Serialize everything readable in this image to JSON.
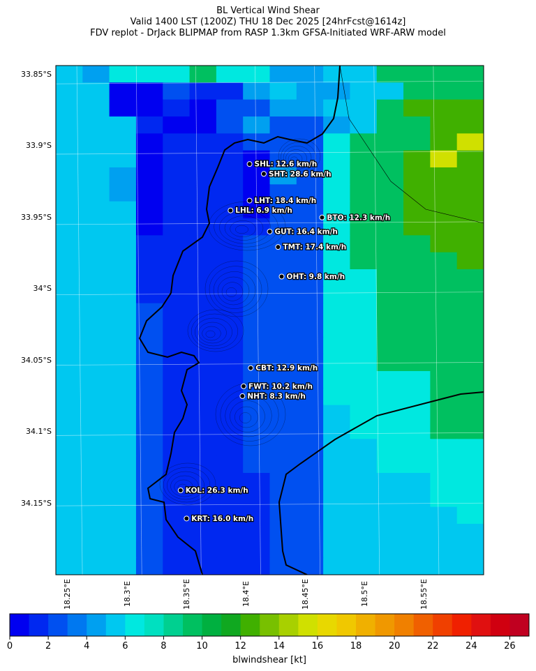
{
  "title": {
    "line1": "BL Vertical Wind Shear",
    "line2": "Valid 1400 LST (1200Z) THU 18 Dec 2025 [24hrFcst@1614z]",
    "line3": "FDV replot - DrJack BLIPMAP from RASP 1.3km GFSA-Initiated WRF-ARW model"
  },
  "axes": {
    "lat_labels": [
      "33.85°S",
      "33.9°S",
      "33.95°S",
      "34°S",
      "34.05°S",
      "34.1°S",
      "34.15°S"
    ],
    "lon_labels": [
      "18.25°E",
      "18.3°E",
      "18.35°E",
      "18.4°E",
      "18.45°E",
      "18.5°E",
      "18.55°E"
    ]
  },
  "stations": [
    {
      "code": "SHL",
      "label": "SHL: 12.6 km/h",
      "lon": 18.393,
      "lat": -33.908
    },
    {
      "code": "SHT",
      "label": "SHT: 28.6 km/h",
      "lon": 18.405,
      "lat": -33.915
    },
    {
      "code": "LHT",
      "label": "LHT: 18.4 km/h",
      "lon": 18.393,
      "lat": -33.934
    },
    {
      "code": "LHL",
      "label": "LHL: 6.9 km/h",
      "lon": 18.377,
      "lat": -33.941
    },
    {
      "code": "BTO",
      "label": "BTO: 12.3 km/h",
      "lon": 18.454,
      "lat": -33.946
    },
    {
      "code": "GUT",
      "label": "GUT: 16.4 km/h",
      "lon": 18.41,
      "lat": -33.956
    },
    {
      "code": "TMT",
      "label": "TMT: 17.4 km/h",
      "lon": 18.417,
      "lat": -33.967
    },
    {
      "code": "OHT",
      "label": "OHT: 9.8 km/h",
      "lon": 18.42,
      "lat": -33.988
    },
    {
      "code": "CBT",
      "label": "CBT: 12.9 km/h",
      "lon": 18.394,
      "lat": -34.053
    },
    {
      "code": "FWT",
      "label": "FWT: 10.2 km/h",
      "lon": 18.388,
      "lat": -34.066
    },
    {
      "code": "NHT",
      "label": "NHT: 8.3 km/h",
      "lon": 18.387,
      "lat": -34.073
    },
    {
      "code": "KOL",
      "label": "KOL: 26.3 km/h",
      "lon": 18.335,
      "lat": -34.14
    },
    {
      "code": "KRT",
      "label": "KRT: 16.0 km/h",
      "lon": 18.34,
      "lat": -34.16
    }
  ],
  "colorbar": {
    "label": "blwindshear [kt]",
    "ticks": [
      "0",
      "2",
      "4",
      "6",
      "8",
      "10",
      "12",
      "14",
      "16",
      "18",
      "20",
      "22",
      "24",
      "26"
    ],
    "min": 0,
    "max": 27,
    "step": 1,
    "colors": [
      "#0000f0",
      "#0028f0",
      "#0050f0",
      "#0078f0",
      "#00a0f0",
      "#00c8f0",
      "#00e8e0",
      "#00e0c0",
      "#00d090",
      "#00c060",
      "#00b040",
      "#10a820",
      "#40b000",
      "#78c000",
      "#a8d000",
      "#d0e000",
      "#e8d800",
      "#f0c800",
      "#f0b000",
      "#f09800",
      "#f08000",
      "#f06000",
      "#f04000",
      "#f02000",
      "#e01010",
      "#d00010",
      "#c00020"
    ]
  },
  "grid": {
    "lon_min": 18.23,
    "lon_max": 18.59,
    "lat_max": -33.838,
    "lat_min": -34.2,
    "rows": [
      "5466676644557777",
      "5511322454455777",
      "5511213344557888",
      "5552113433457788",
      "5551222033677789",
      "5551222133677898",
      "5541222143677888",
      "5541222133677888",
      "5551222133677888",
      "5551222233677888",
      "5552222333677788",
      "5552222333677778",
      "5552222333667777",
      "5552222333667777",
      "5553222333667777",
      "5553222333667777",
      "5553222333667777",
      "5553222333667777",
      "5553222333666677",
      "5553222333666677",
      "5553222333566677",
      "5553222333566677",
      "5553222333556666",
      "5553222333556666",
      "5553222233555566",
      "5553222233555566",
      "5553222233555556",
      "5553222233555555",
      "5553222233555555",
      "5553222233555555"
    ]
  }
}
